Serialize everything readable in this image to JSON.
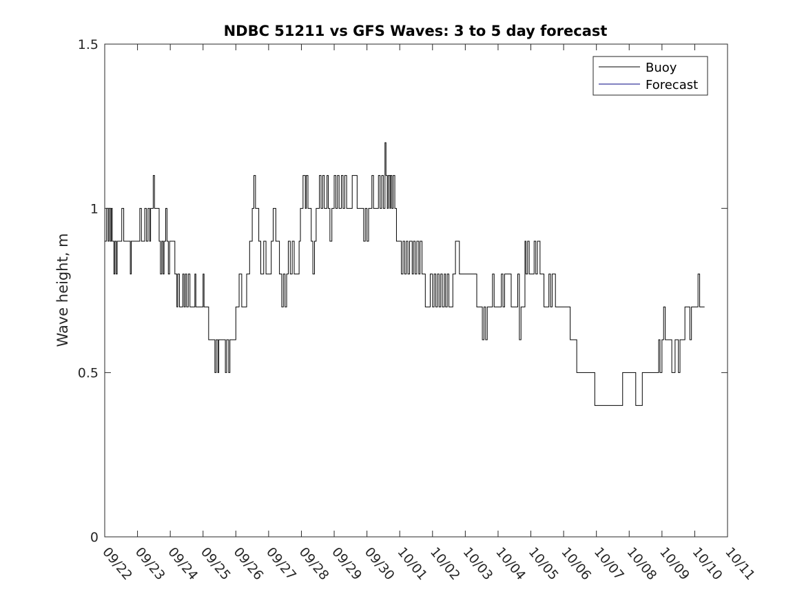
{
  "chart_data": {
    "type": "line",
    "title": "NDBC 51211 vs GFS Waves: 3 to 5 day forecast",
    "xlabel": "",
    "ylabel": "Wave height, m",
    "xlim": [
      "09/22",
      "10/11"
    ],
    "ylim": [
      0,
      1.5
    ],
    "x_unit": "days",
    "x_tick_labels": [
      "09/22",
      "09/23",
      "09/24",
      "09/25",
      "09/26",
      "09/27",
      "09/28",
      "09/29",
      "09/30",
      "10/01",
      "10/02",
      "10/03",
      "10/04",
      "10/05",
      "10/06",
      "10/07",
      "10/08",
      "10/09",
      "10/10",
      "10/11"
    ],
    "y_ticks": [
      0,
      0.5,
      1,
      1.5
    ],
    "y_tick_labels": [
      "0",
      "0.5",
      "1",
      "1.5"
    ],
    "grid": false,
    "legend": {
      "position": "top-right",
      "entries": [
        {
          "label": "Buoy",
          "color": "#000000"
        },
        {
          "label": "Forecast",
          "color": "#000080"
        }
      ]
    },
    "series": [
      {
        "name": "Buoy",
        "color": "#000000",
        "step": true,
        "points": [
          [
            0.0,
            0.9
          ],
          [
            0.05,
            1.0
          ],
          [
            0.1,
            0.9
          ],
          [
            0.13,
            1.0
          ],
          [
            0.17,
            0.9
          ],
          [
            0.2,
            1.0
          ],
          [
            0.23,
            0.9
          ],
          [
            0.28,
            0.8
          ],
          [
            0.31,
            0.9
          ],
          [
            0.35,
            0.8
          ],
          [
            0.38,
            0.9
          ],
          [
            0.52,
            1.0
          ],
          [
            0.58,
            0.9
          ],
          [
            0.75,
            0.9
          ],
          [
            0.78,
            0.8
          ],
          [
            0.81,
            0.9
          ],
          [
            1.05,
            0.9
          ],
          [
            1.07,
            1.0
          ],
          [
            1.12,
            0.9
          ],
          [
            1.22,
            1.0
          ],
          [
            1.27,
            0.9
          ],
          [
            1.32,
            1.0
          ],
          [
            1.37,
            0.9
          ],
          [
            1.4,
            1.0
          ],
          [
            1.45,
            1.0
          ],
          [
            1.48,
            1.1
          ],
          [
            1.52,
            1.0
          ],
          [
            1.62,
            1.0
          ],
          [
            1.66,
            0.9
          ],
          [
            1.7,
            0.8
          ],
          [
            1.74,
            0.9
          ],
          [
            1.78,
            0.8
          ],
          [
            1.81,
            0.9
          ],
          [
            1.86,
            1.0
          ],
          [
            1.9,
            0.9
          ],
          [
            1.94,
            0.8
          ],
          [
            1.98,
            0.9
          ],
          [
            2.1,
            0.9
          ],
          [
            2.14,
            0.8
          ],
          [
            2.2,
            0.7
          ],
          [
            2.23,
            0.8
          ],
          [
            2.28,
            0.7
          ],
          [
            2.36,
            0.7
          ],
          [
            2.38,
            0.8
          ],
          [
            2.42,
            0.7
          ],
          [
            2.46,
            0.8
          ],
          [
            2.5,
            0.7
          ],
          [
            2.55,
            0.8
          ],
          [
            2.6,
            0.7
          ],
          [
            2.75,
            0.8
          ],
          [
            2.78,
            0.7
          ],
          [
            2.95,
            0.7
          ],
          [
            3.0,
            0.8
          ],
          [
            3.03,
            0.7
          ],
          [
            3.15,
            0.7
          ],
          [
            3.17,
            0.6
          ],
          [
            3.33,
            0.6
          ],
          [
            3.36,
            0.5
          ],
          [
            3.4,
            0.6
          ],
          [
            3.45,
            0.5
          ],
          [
            3.48,
            0.6
          ],
          [
            3.65,
            0.6
          ],
          [
            3.68,
            0.5
          ],
          [
            3.72,
            0.6
          ],
          [
            3.78,
            0.5
          ],
          [
            3.82,
            0.6
          ],
          [
            3.95,
            0.6
          ],
          [
            4.0,
            0.7
          ],
          [
            4.07,
            0.7
          ],
          [
            4.1,
            0.8
          ],
          [
            4.18,
            0.7
          ],
          [
            4.3,
            0.7
          ],
          [
            4.33,
            0.8
          ],
          [
            4.38,
            0.8
          ],
          [
            4.42,
            0.9
          ],
          [
            4.5,
            1.0
          ],
          [
            4.55,
            1.1
          ],
          [
            4.6,
            1.0
          ],
          [
            4.7,
            0.9
          ],
          [
            4.76,
            0.8
          ],
          [
            4.85,
            0.9
          ],
          [
            4.92,
            0.8
          ],
          [
            5.05,
            0.8
          ],
          [
            5.08,
            0.9
          ],
          [
            5.14,
            1.0
          ],
          [
            5.22,
            0.9
          ],
          [
            5.3,
            0.9
          ],
          [
            5.33,
            0.8
          ],
          [
            5.4,
            0.7
          ],
          [
            5.45,
            0.8
          ],
          [
            5.5,
            0.7
          ],
          [
            5.55,
            0.8
          ],
          [
            5.6,
            0.9
          ],
          [
            5.66,
            0.8
          ],
          [
            5.72,
            0.9
          ],
          [
            5.78,
            0.8
          ],
          [
            5.93,
            0.9
          ],
          [
            5.97,
            1.0
          ],
          [
            6.05,
            1.1
          ],
          [
            6.12,
            1.0
          ],
          [
            6.15,
            1.1
          ],
          [
            6.2,
            1.0
          ],
          [
            6.3,
            0.9
          ],
          [
            6.35,
            0.8
          ],
          [
            6.4,
            0.9
          ],
          [
            6.45,
            1.0
          ],
          [
            6.55,
            1.1
          ],
          [
            6.6,
            1.0
          ],
          [
            6.65,
            1.1
          ],
          [
            6.7,
            1.0
          ],
          [
            6.78,
            1.1
          ],
          [
            6.82,
            1.0
          ],
          [
            6.87,
            0.9
          ],
          [
            6.93,
            1.0
          ],
          [
            7.0,
            1.1
          ],
          [
            7.05,
            1.0
          ],
          [
            7.1,
            1.1
          ],
          [
            7.15,
            1.0
          ],
          [
            7.22,
            1.1
          ],
          [
            7.27,
            1.0
          ],
          [
            7.32,
            1.1
          ],
          [
            7.38,
            1.0
          ],
          [
            7.5,
            1.0
          ],
          [
            7.55,
            1.1
          ],
          [
            7.7,
            1.0
          ],
          [
            7.8,
            1.0
          ],
          [
            7.84,
            1.0
          ],
          [
            7.9,
            0.9
          ],
          [
            7.95,
            1.0
          ],
          [
            8.0,
            0.9
          ],
          [
            8.05,
            1.0
          ],
          [
            8.15,
            1.1
          ],
          [
            8.2,
            1.0
          ],
          [
            8.28,
            1.0
          ],
          [
            8.35,
            1.1
          ],
          [
            8.4,
            1.0
          ],
          [
            8.45,
            1.1
          ],
          [
            8.5,
            1.0
          ],
          [
            8.55,
            1.2
          ],
          [
            8.58,
            1.1
          ],
          [
            8.62,
            1.0
          ],
          [
            8.65,
            1.1
          ],
          [
            8.7,
            1.0
          ],
          [
            8.72,
            1.1
          ],
          [
            8.76,
            1.0
          ],
          [
            8.8,
            1.1
          ],
          [
            8.85,
            1.0
          ],
          [
            8.9,
            0.9
          ],
          [
            9.0,
            0.9
          ],
          [
            9.05,
            0.8
          ],
          [
            9.1,
            0.9
          ],
          [
            9.15,
            0.8
          ],
          [
            9.2,
            0.9
          ],
          [
            9.25,
            0.8
          ],
          [
            9.3,
            0.9
          ],
          [
            9.38,
            0.8
          ],
          [
            9.42,
            0.9
          ],
          [
            9.47,
            0.8
          ],
          [
            9.52,
            0.9
          ],
          [
            9.58,
            0.8
          ],
          [
            9.62,
            0.9
          ],
          [
            9.68,
            0.8
          ],
          [
            9.73,
            0.8
          ],
          [
            9.78,
            0.7
          ],
          [
            9.9,
            0.7
          ],
          [
            9.93,
            0.8
          ],
          [
            10.0,
            0.7
          ],
          [
            10.05,
            0.8
          ],
          [
            10.1,
            0.7
          ],
          [
            10.15,
            0.8
          ],
          [
            10.2,
            0.7
          ],
          [
            10.25,
            0.8
          ],
          [
            10.3,
            0.7
          ],
          [
            10.36,
            0.8
          ],
          [
            10.4,
            0.7
          ],
          [
            10.45,
            0.8
          ],
          [
            10.5,
            0.7
          ],
          [
            10.58,
            0.7
          ],
          [
            10.62,
            0.8
          ],
          [
            10.68,
            0.8
          ],
          [
            10.7,
            0.9
          ],
          [
            10.82,
            0.8
          ],
          [
            11.1,
            0.8
          ],
          [
            11.3,
            0.8
          ],
          [
            11.35,
            0.7
          ],
          [
            11.5,
            0.7
          ],
          [
            11.52,
            0.6
          ],
          [
            11.57,
            0.7
          ],
          [
            11.62,
            0.6
          ],
          [
            11.67,
            0.7
          ],
          [
            11.8,
            0.7
          ],
          [
            11.83,
            0.8
          ],
          [
            11.88,
            0.7
          ],
          [
            12.0,
            0.7
          ],
          [
            12.1,
            0.8
          ],
          [
            12.15,
            0.7
          ],
          [
            12.2,
            0.8
          ],
          [
            12.35,
            0.8
          ],
          [
            12.4,
            0.7
          ],
          [
            12.55,
            0.7
          ],
          [
            12.6,
            0.8
          ],
          [
            12.65,
            0.6
          ],
          [
            12.7,
            0.7
          ],
          [
            12.82,
            0.9
          ],
          [
            12.85,
            0.8
          ],
          [
            12.9,
            0.9
          ],
          [
            12.95,
            0.8
          ],
          [
            13.05,
            0.8
          ],
          [
            13.1,
            0.9
          ],
          [
            13.15,
            0.8
          ],
          [
            13.2,
            0.9
          ],
          [
            13.28,
            0.8
          ],
          [
            13.33,
            0.8
          ],
          [
            13.4,
            0.7
          ],
          [
            13.5,
            0.7
          ],
          [
            13.55,
            0.8
          ],
          [
            13.6,
            0.7
          ],
          [
            13.65,
            0.8
          ],
          [
            13.75,
            0.7
          ],
          [
            13.9,
            0.7
          ],
          [
            14.15,
            0.7
          ],
          [
            14.2,
            0.6
          ],
          [
            14.35,
            0.6
          ],
          [
            14.4,
            0.5
          ],
          [
            14.5,
            0.5
          ],
          [
            14.9,
            0.5
          ],
          [
            14.95,
            0.4
          ],
          [
            15.3,
            0.4
          ],
          [
            15.7,
            0.4
          ],
          [
            15.8,
            0.5
          ],
          [
            16.0,
            0.5
          ],
          [
            16.15,
            0.5
          ],
          [
            16.2,
            0.4
          ],
          [
            16.35,
            0.4
          ],
          [
            16.4,
            0.5
          ],
          [
            16.5,
            0.5
          ],
          [
            16.8,
            0.5
          ],
          [
            16.9,
            0.6
          ],
          [
            16.94,
            0.5
          ],
          [
            17.0,
            0.6
          ],
          [
            17.05,
            0.7
          ],
          [
            17.1,
            0.6
          ],
          [
            17.2,
            0.6
          ],
          [
            17.3,
            0.5
          ],
          [
            17.4,
            0.6
          ],
          [
            17.5,
            0.5
          ],
          [
            17.55,
            0.6
          ],
          [
            17.65,
            0.6
          ],
          [
            17.7,
            0.7
          ],
          [
            17.85,
            0.6
          ],
          [
            17.9,
            0.7
          ],
          [
            18.0,
            0.7
          ],
          [
            18.05,
            0.7
          ],
          [
            18.1,
            0.8
          ],
          [
            18.15,
            0.7
          ],
          [
            18.3,
            0.7
          ]
        ]
      },
      {
        "name": "Forecast",
        "color": "#000080",
        "points": []
      }
    ]
  }
}
